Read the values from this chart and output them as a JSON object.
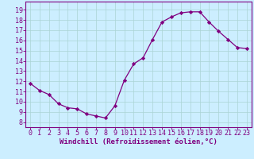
{
  "x": [
    0,
    1,
    2,
    3,
    4,
    5,
    6,
    7,
    8,
    9,
    10,
    11,
    12,
    13,
    14,
    15,
    16,
    17,
    18,
    19,
    20,
    21,
    22,
    23
  ],
  "y": [
    11.8,
    11.1,
    10.7,
    9.8,
    9.4,
    9.3,
    8.8,
    8.6,
    8.4,
    9.6,
    12.1,
    13.7,
    14.3,
    16.1,
    17.8,
    18.3,
    18.7,
    18.8,
    18.8,
    17.8,
    16.9,
    16.1,
    15.3,
    15.2
  ],
  "line_color": "#800080",
  "marker": "D",
  "marker_size": 2.2,
  "bg_color": "#cceeff",
  "grid_color": "#aad4d4",
  "xlabel": "Windchill (Refroidissement éolien,°C)",
  "ylabel_ticks": [
    8,
    9,
    10,
    11,
    12,
    13,
    14,
    15,
    16,
    17,
    18,
    19
  ],
  "ylim": [
    7.5,
    19.8
  ],
  "xlim": [
    -0.5,
    23.5
  ],
  "tick_fontsize": 6.0,
  "xlabel_fontsize": 6.5
}
